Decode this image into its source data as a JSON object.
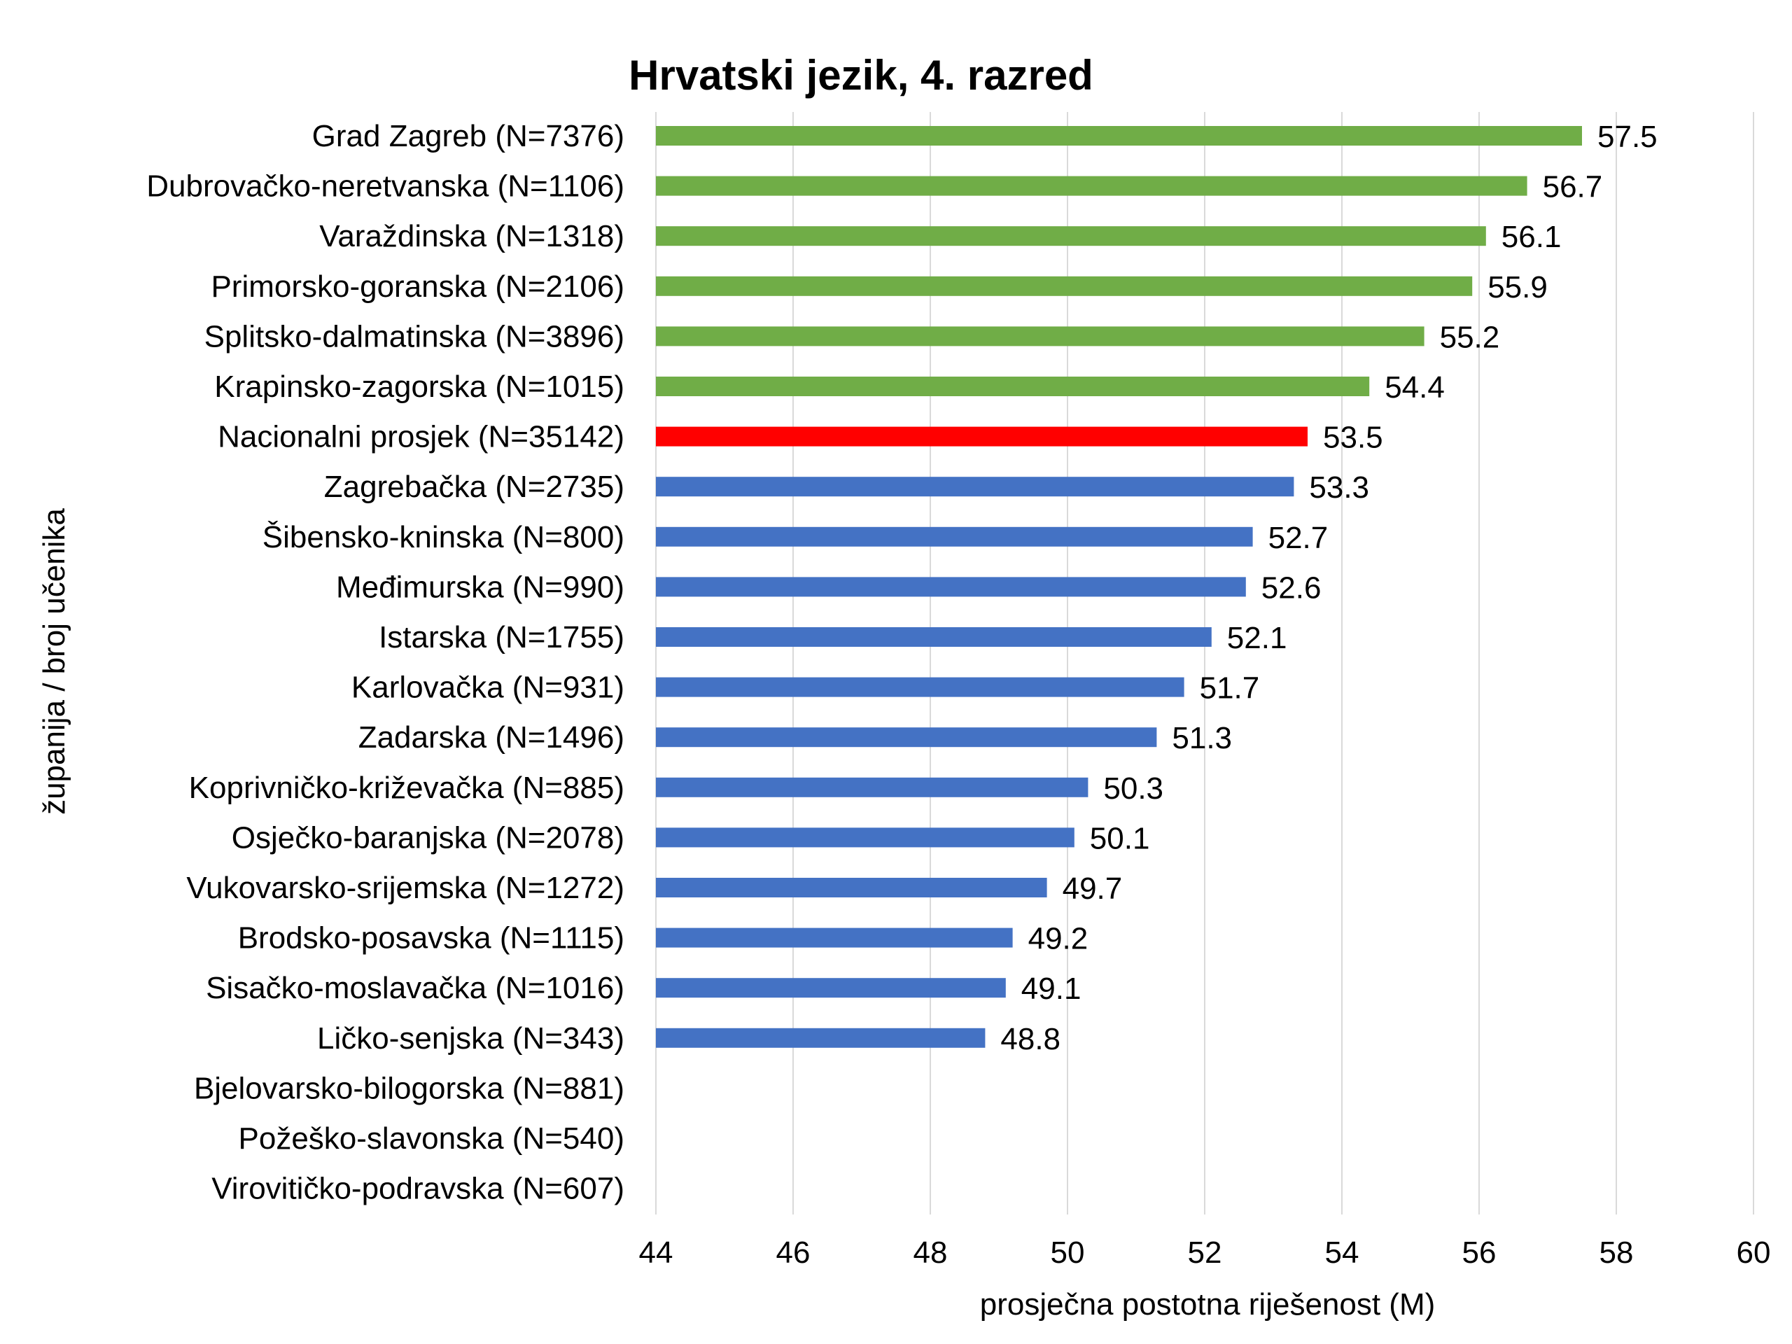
{
  "chart_data": {
    "type": "bar",
    "orientation": "horizontal",
    "title": "Hrvatski jezik, 4. razred",
    "xlabel": "prosječna postotna riješenost (M)",
    "ylabel": "županija / broj učenika",
    "xlim": [
      44,
      60
    ],
    "x_ticks": [
      "44",
      "46",
      "48",
      "50",
      "52",
      "54",
      "56",
      "58",
      "60"
    ],
    "grid": "vertical",
    "legend": "none",
    "categories": [
      "Grad Zagreb (N=7376)",
      "Dubrovačko-neretvanska (N=1106)",
      "Varaždinska (N=1318)",
      "Primorsko-goranska (N=2106)",
      "Splitsko-dalmatinska (N=3896)",
      "Krapinsko-zagorska (N=1015)",
      "Nacionalni prosjek  (N=35142)",
      "Zagrebačka (N=2735)",
      "Šibensko-kninska (N=800)",
      "Međimurska (N=990)",
      "Istarska (N=1755)",
      "Karlovačka (N=931)",
      "Zadarska (N=1496)",
      "Koprivničko-križevačka (N=885)",
      "Osječko-baranjska (N=2078)",
      "Vukovarsko-srijemska (N=1272)",
      "Brodsko-posavska (N=1115)",
      "Sisačko-moslavačka (N=1016)",
      "Ličko-senjska (N=343)",
      "Bjelovarsko-bilogorska (N=881)",
      "Požeško-slavonska (N=540)",
      "Virovitičko-podravska (N=607)"
    ],
    "values": [
      57.5,
      56.7,
      56.1,
      55.9,
      55.2,
      54.4,
      53.5,
      53.3,
      52.7,
      52.6,
      52.1,
      51.7,
      51.3,
      50.3,
      50.1,
      49.7,
      49.2,
      49.1,
      48.8,
      null,
      null,
      null
    ],
    "value_labels": [
      "57.5",
      "56.7",
      "56.1",
      "55.9",
      "55.2",
      "54.4",
      "53.5",
      "53.3",
      "52.7",
      "52.6",
      "52.1",
      "51.7",
      "51.3",
      "50.3",
      "50.1",
      "49.7",
      "49.2",
      "49.1",
      "48.8",
      "",
      "",
      ""
    ],
    "bar_colors": [
      "#70ad47",
      "#70ad47",
      "#70ad47",
      "#70ad47",
      "#70ad47",
      "#70ad47",
      "#ff0000",
      "#4472c4",
      "#4472c4",
      "#4472c4",
      "#4472c4",
      "#4472c4",
      "#4472c4",
      "#4472c4",
      "#4472c4",
      "#4472c4",
      "#4472c4",
      "#4472c4",
      "#4472c4",
      "#4472c4",
      "#4472c4",
      "#4472c4"
    ],
    "colors": {
      "above_average": "#70ad47",
      "national_average": "#ff0000",
      "below_average": "#4472c4",
      "gridline": "#d9d9d9"
    }
  }
}
